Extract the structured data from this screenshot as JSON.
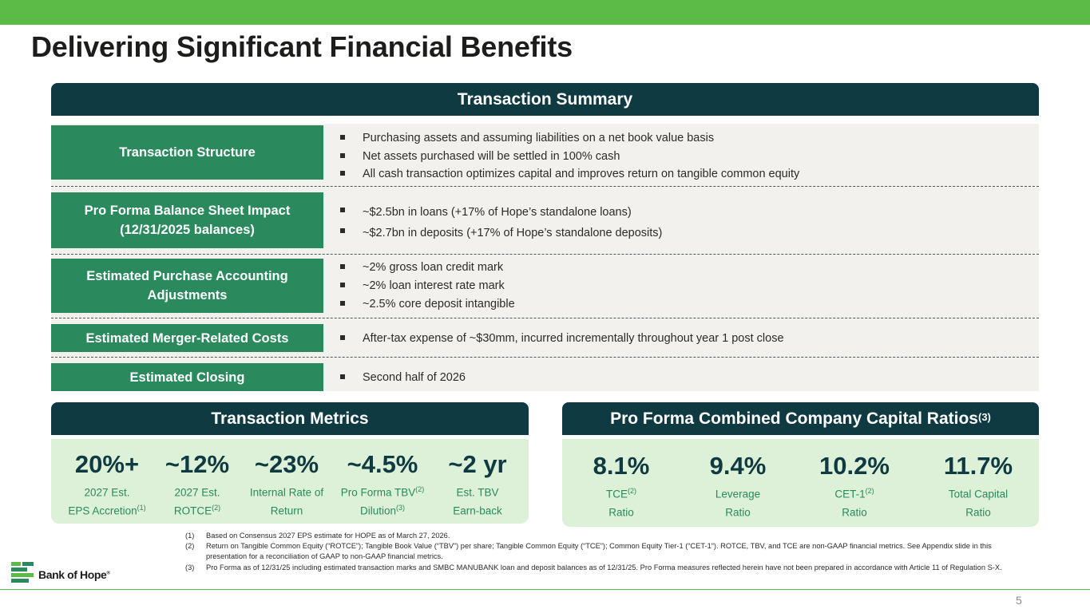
{
  "title": "Delivering Significant Financial Benefits",
  "colors": {
    "green_bar": "#5bbb46",
    "dark_teal": "#0f3a41",
    "label_green": "#2a8a5e",
    "metric_bg": "#ddf0d8",
    "summary_bg": "#f2f1ed"
  },
  "summary": {
    "header": "Transaction Summary",
    "rows": [
      {
        "label": "Transaction Structure",
        "bullets": [
          "Purchasing assets and assuming liabilities on a net book value basis",
          "Net assets purchased will be settled in 100% cash",
          "All cash transaction optimizes capital and improves return on tangible common equity"
        ]
      },
      {
        "label": "Pro Forma Balance Sheet Impact (12/31/2025 balances)",
        "bullets": [
          "~$2.5bn in loans (+17% of Hope’s standalone loans)",
          "~$2.7bn in deposits (+17% of Hope’s standalone deposits)"
        ]
      },
      {
        "label": "Estimated Purchase Accounting Adjustments",
        "bullets": [
          "~2% gross loan credit mark",
          "~2% loan interest rate mark",
          "~2.5% core deposit intangible"
        ]
      },
      {
        "label": "Estimated Merger-Related Costs",
        "bullets": [
          "After-tax expense of ~$30mm, incurred incrementally throughout year 1 post close"
        ]
      },
      {
        "label": "Estimated Closing",
        "bullets": [
          "Second half of 2026"
        ]
      }
    ]
  },
  "metrics": {
    "header": "Transaction Metrics",
    "items": [
      {
        "value": "20%+",
        "line1": "2027 Est.",
        "line2": "EPS Accretion",
        "line1_sup": "",
        "line2_sup": "(1)"
      },
      {
        "value": "~12%",
        "line1": "2027 Est.",
        "line2": "ROTCE",
        "line1_sup": "",
        "line2_sup": "(2)"
      },
      {
        "value": "~23%",
        "line1": "Internal Rate of",
        "line2": "Return",
        "line1_sup": "",
        "line2_sup": ""
      },
      {
        "value": "~4.5%",
        "line1": "Pro Forma TBV",
        "line2": "Dilution",
        "line1_sup": "(2)",
        "line2_sup": "(3)"
      },
      {
        "value": "~2 yr",
        "line1": "Est. TBV",
        "line2": "Earn-back",
        "line1_sup": "",
        "line2_sup": ""
      }
    ]
  },
  "capital": {
    "header": "Pro Forma Combined Company Capital Ratios",
    "header_sup": "(3)",
    "items": [
      {
        "value": "8.1%",
        "line1": "TCE",
        "line2": "Ratio",
        "line1_sup": "(2)",
        "line2_sup": ""
      },
      {
        "value": "9.4%",
        "line1": "Leverage",
        "line2": "Ratio",
        "line1_sup": "",
        "line2_sup": ""
      },
      {
        "value": "10.2%",
        "line1": "CET-1",
        "line2": "Ratio",
        "line1_sup": "(2)",
        "line2_sup": ""
      },
      {
        "value": "11.7%",
        "line1": "Total Capital",
        "line2": "Ratio",
        "line1_sup": "",
        "line2_sup": ""
      }
    ]
  },
  "footnotes": [
    {
      "num": "(1)",
      "text": "Based on Consensus 2027 EPS estimate for HOPE as of March 27, 2026."
    },
    {
      "num": "(2)",
      "text": "Return on Tangible Common Equity (“ROTCE”); Tangible Book Value (“TBV”) per share; Tangible Common Equity (“TCE”); Common Equity Tier-1 (“CET-1”). ROTCE, TBV, and TCE are non-GAAP financial metrics. See Appendix slide in this presentation for a reconciliation of GAAP to non-GAAP financial metrics."
    },
    {
      "num": "(3)",
      "text": "Pro Forma as of 12/31/25 including estimated transaction marks and SMBC MANUBANK loan and deposit balances as of 12/31/25. Pro Forma measures reflected herein have not been prepared in accordance with Article 11 of Regulation S-X."
    }
  ],
  "logo": {
    "text": "Bank of Hope",
    "mark": "®"
  },
  "page_number": "5"
}
